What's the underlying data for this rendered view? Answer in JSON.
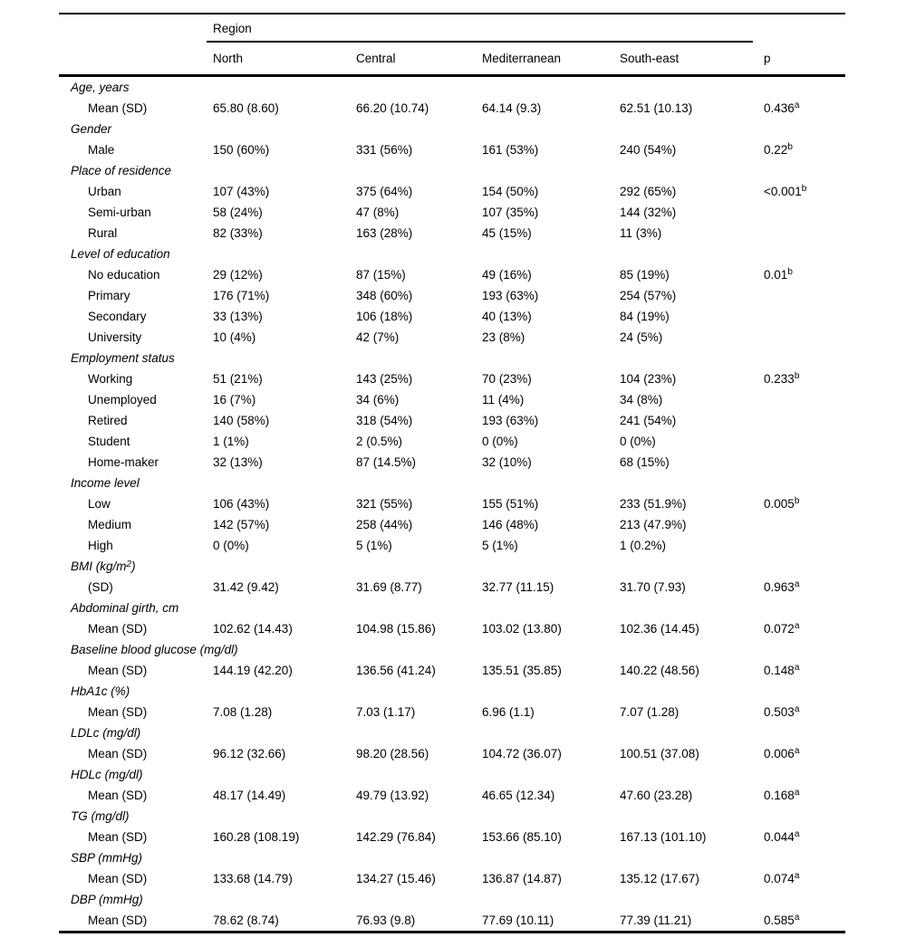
{
  "table": {
    "header": {
      "region_label": "Region",
      "columns": [
        "North",
        "Central",
        "Mediterranean",
        "South-east"
      ],
      "p_label": "p"
    },
    "rows": [
      {
        "type": "section",
        "label": "Age, years"
      },
      {
        "type": "sub",
        "label": "Mean (SD)",
        "values": [
          "65.80 (8.60)",
          "66.20 (10.74)",
          "64.14 (9.3)",
          "62.51 (10.13)"
        ],
        "p": "0.436",
        "p_sup": "a"
      },
      {
        "type": "section",
        "label": "Gender"
      },
      {
        "type": "sub",
        "label": "Male",
        "values": [
          "150 (60%)",
          "331 (56%)",
          "161 (53%)",
          "240 (54%)"
        ],
        "p": "0.22",
        "p_sup": "b"
      },
      {
        "type": "section",
        "label": "Place of residence"
      },
      {
        "type": "sub",
        "label": "Urban",
        "values": [
          "107 (43%)",
          "375 (64%)",
          "154 (50%)",
          "292 (65%)"
        ],
        "p": "<0.001",
        "p_sup": "b"
      },
      {
        "type": "sub",
        "label": "Semi-urban",
        "values": [
          "58 (24%)",
          "47 (8%)",
          "107 (35%)",
          "144 (32%)"
        ]
      },
      {
        "type": "sub",
        "label": "Rural",
        "values": [
          "82 (33%)",
          "163 (28%)",
          "45 (15%)",
          "11 (3%)"
        ]
      },
      {
        "type": "section",
        "label": "Level of education"
      },
      {
        "type": "sub",
        "label": "No education",
        "values": [
          "29 (12%)",
          "87 (15%)",
          "49 (16%)",
          "85 (19%)"
        ],
        "p": "0.01",
        "p_sup": "b"
      },
      {
        "type": "sub",
        "label": "Primary",
        "values": [
          "176 (71%)",
          "348 (60%)",
          "193 (63%)",
          "254 (57%)"
        ]
      },
      {
        "type": "sub",
        "label": "Secondary",
        "values": [
          "33 (13%)",
          "106 (18%)",
          "40 (13%)",
          "84 (19%)"
        ]
      },
      {
        "type": "sub",
        "label": "University",
        "values": [
          "10 (4%)",
          "42 (7%)",
          "23 (8%)",
          "24 (5%)"
        ]
      },
      {
        "type": "section",
        "label": "Employment status"
      },
      {
        "type": "sub",
        "label": "Working",
        "values": [
          "51 (21%)",
          "143 (25%)",
          "70 (23%)",
          "104 (23%)"
        ],
        "p": "0.233",
        "p_sup": "b"
      },
      {
        "type": "sub",
        "label": "Unemployed",
        "values": [
          "16 (7%)",
          "34 (6%)",
          "11 (4%)",
          "34 (8%)"
        ]
      },
      {
        "type": "sub",
        "label": "Retired",
        "values": [
          "140 (58%)",
          "318 (54%)",
          "193 (63%)",
          "241 (54%)"
        ]
      },
      {
        "type": "sub",
        "label": "Student",
        "values": [
          "1 (1%)",
          "2 (0.5%)",
          "0 (0%)",
          "0 (0%)"
        ]
      },
      {
        "type": "sub",
        "label": "Home-maker",
        "values": [
          "32 (13%)",
          "87 (14.5%)",
          "32 (10%)",
          "68 (15%)"
        ]
      },
      {
        "type": "section",
        "label": "Income level"
      },
      {
        "type": "sub",
        "label": "Low",
        "values": [
          "106 (43%)",
          "321 (55%)",
          "155 (51%)",
          "233 (51.9%)"
        ],
        "p": "0.005",
        "p_sup": "b"
      },
      {
        "type": "sub",
        "label": "Medium",
        "values": [
          "142 (57%)",
          "258 (44%)",
          "146 (48%)",
          "213 (47.9%)"
        ]
      },
      {
        "type": "sub",
        "label": "High",
        "values": [
          "0 (0%)",
          "5 (1%)",
          "5 (1%)",
          "1 (0.2%)"
        ]
      },
      {
        "type": "section",
        "label": "BMI (kg/m",
        "label_sup": "2",
        "label_post": ")"
      },
      {
        "type": "sub",
        "label": "(SD)",
        "values": [
          "31.42 (9.42)",
          "31.69 (8.77)",
          "32.77 (11.15)",
          "31.70 (7.93)"
        ],
        "p": "0.963",
        "p_sup": "a"
      },
      {
        "type": "section",
        "label": "Abdominal girth, cm"
      },
      {
        "type": "sub",
        "label": "Mean (SD)",
        "values": [
          "102.62 (14.43)",
          "104.98 (15.86)",
          "103.02 (13.80)",
          "102.36 (14.45)"
        ],
        "p": "0.072",
        "p_sup": "a"
      },
      {
        "type": "section",
        "label": "Baseline blood glucose (mg/dl)"
      },
      {
        "type": "sub",
        "label": "Mean (SD)",
        "values": [
          "144.19 (42.20)",
          "136.56 (41.24)",
          "135.51 (35.85)",
          "140.22 (48.56)"
        ],
        "p": "0.148",
        "p_sup": "a"
      },
      {
        "type": "section",
        "label": "HbA1c (%)"
      },
      {
        "type": "sub",
        "label": "Mean (SD)",
        "values": [
          "7.08 (1.28)",
          "7.03 (1.17)",
          "6.96 (1.1)",
          "7.07 (1.28)"
        ],
        "p": "0.503",
        "p_sup": "a"
      },
      {
        "type": "section",
        "label": "LDLc (mg/dl)"
      },
      {
        "type": "sub",
        "label": "Mean (SD)",
        "values": [
          "96.12 (32.66)",
          "98.20 (28.56)",
          "104.72 (36.07)",
          "100.51 (37.08)"
        ],
        "p": "0.006",
        "p_sup": "a"
      },
      {
        "type": "section",
        "label": "HDLc (mg/dl)"
      },
      {
        "type": "sub",
        "label": "Mean (SD)",
        "values": [
          "48.17 (14.49)",
          "49.79 (13.92)",
          "46.65 (12.34)",
          "47.60 (23.28)"
        ],
        "p": "0.168",
        "p_sup": "a"
      },
      {
        "type": "section",
        "label": "TG (mg/dl)"
      },
      {
        "type": "sub",
        "label": "Mean (SD)",
        "values": [
          "160.28 (108.19)",
          "142.29 (76.84)",
          "153.66 (85.10)",
          "167.13 (101.10)"
        ],
        "p": "0.044",
        "p_sup": "a"
      },
      {
        "type": "section",
        "label": "SBP (mmHg)"
      },
      {
        "type": "sub",
        "label": "Mean (SD)",
        "values": [
          "133.68 (14.79)",
          "134.27 (15.46)",
          "136.87 (14.87)",
          "135.12 (17.67)"
        ],
        "p": "0.074",
        "p_sup": "a"
      },
      {
        "type": "section",
        "label": "DBP (mmHg)"
      },
      {
        "type": "sub",
        "label": "Mean (SD)",
        "values": [
          "78.62 (8.74)",
          "76.93 (9.8)",
          "77.69 (10.11)",
          "77.39 (11.21)"
        ],
        "p": "0.585",
        "p_sup": "a"
      }
    ]
  }
}
